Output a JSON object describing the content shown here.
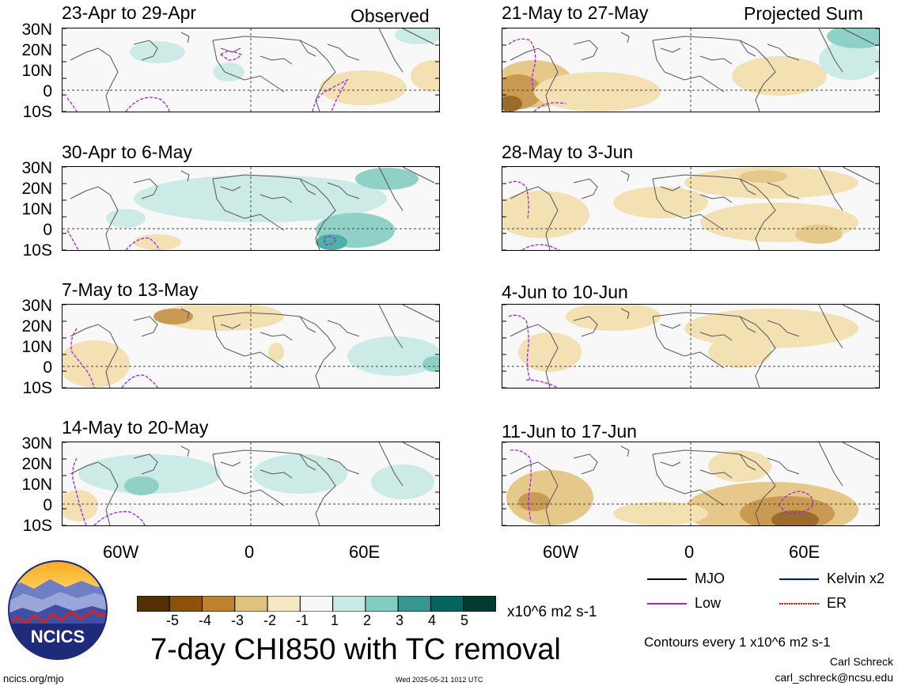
{
  "header": {
    "left_column_label": "Observed",
    "right_column_label": "Projected Sum"
  },
  "panels_left": [
    {
      "title": "23-Apr to 29-Apr"
    },
    {
      "title": "30-Apr to 6-May"
    },
    {
      "title": "7-May to 13-May"
    },
    {
      "title": "14-May to 20-May"
    }
  ],
  "panels_right": [
    {
      "title": "21-May to 27-May"
    },
    {
      "title": "28-May to 3-Jun"
    },
    {
      "title": "4-Jun to 10-Jun"
    },
    {
      "title": "11-Jun to 17-Jun"
    }
  ],
  "lat_labels": [
    "30N",
    "20N",
    "10N",
    "0",
    "10S"
  ],
  "lon_labels": [
    "60W",
    "0",
    "60E"
  ],
  "colorbar": {
    "ticks": [
      "-5",
      "-4",
      "-3",
      "-2",
      "-1",
      "1",
      "2",
      "3",
      "4",
      "5"
    ],
    "units": "x10^6 m2 s-1",
    "colors": [
      "#543005",
      "#8c510a",
      "#bf812d",
      "#dfc27d",
      "#f6e8c3",
      "#f7f7f7",
      "#c7eae5",
      "#80cdc1",
      "#35978f",
      "#01665e",
      "#003c30"
    ]
  },
  "main_title": "7-day CHI850 with TC removal",
  "legend": {
    "items": [
      {
        "label": "MJO",
        "color": "#000000"
      },
      {
        "label": "Kelvin x2",
        "color": "#0000ff"
      },
      {
        "label": "Low",
        "color": "#a020f0"
      },
      {
        "label": "ER",
        "color": "#ff0000"
      }
    ],
    "contours_note": "Contours every 1 x10^6 m2 s-1"
  },
  "logo": {
    "text": "NCICS"
  },
  "footer": {
    "url": "ncics.org/mjo",
    "timestamp": "Wed 2025-05-21 1012 UTC",
    "author": "Carl Schreck",
    "email": "carl_schreck@ncsu.edu"
  }
}
